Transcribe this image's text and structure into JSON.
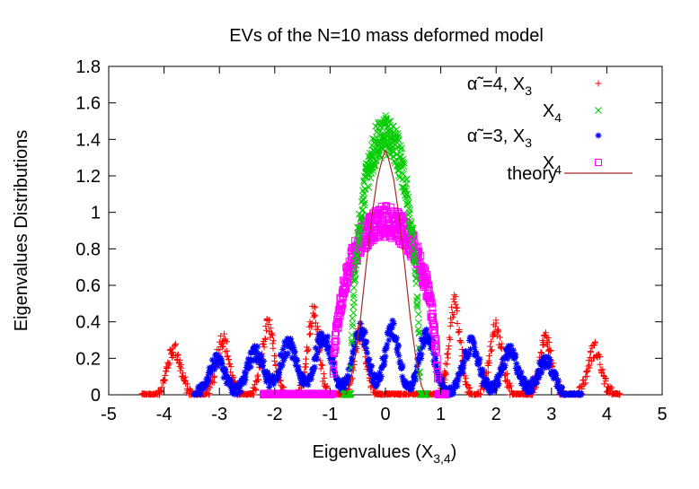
{
  "chart_data": {
    "type": "scatter",
    "title": "EVs of the N=10 mass deformed model",
    "xlabel": "Eigenvalues  (X",
    "xlabel_sub": "3,4",
    "xlabel_close": ")",
    "ylabel": "Eigenvalues Distributions",
    "xlim": [
      -5,
      5
    ],
    "ylim": [
      0,
      1.8
    ],
    "xticks": [
      "-5",
      "-4",
      "-3",
      "-2",
      "-1",
      "0",
      "1",
      "2",
      "3",
      "4",
      "5"
    ],
    "yticks": [
      "0",
      "0.2",
      "0.4",
      "0.6",
      "0.8",
      "1",
      "1.2",
      "1.4",
      "1.6",
      "1.8"
    ],
    "grid": false,
    "legend_position": "top-right",
    "legend": [
      {
        "label": "α̃ =4, X",
        "sub": "3",
        "marker": "+",
        "color": "#ff0000"
      },
      {
        "label": "X",
        "sub": "4",
        "marker": "x",
        "color": "#00cc00"
      },
      {
        "label": "α̃ =3, X",
        "sub": "3",
        "marker": "*",
        "color": "#0000ff"
      },
      {
        "label": "X",
        "sub": "4",
        "marker": "square",
        "color": "#ff00ff"
      },
      {
        "label": "theory",
        "sub": "",
        "marker": "line",
        "color": "#a52a2a"
      }
    ],
    "series": [
      {
        "key": "a4x3",
        "marker": "+",
        "color": "#ff0000",
        "range": [
          -4.4,
          1.1
        ],
        "peaks": [
          {
            "mu": -3.82,
            "sigma": 0.12,
            "h": 0.25
          },
          {
            "mu": -2.94,
            "sigma": 0.11,
            "h": 0.31
          },
          {
            "mu": -2.12,
            "sigma": 0.11,
            "h": 0.37
          },
          {
            "mu": -1.3,
            "sigma": 0.1,
            "h": 0.45
          },
          {
            "mu": -0.45,
            "sigma": 0.1,
            "h": 0.35
          },
          {
            "mu": 1.25,
            "sigma": 0.1,
            "h": 0.5
          },
          {
            "mu": 2.0,
            "sigma": 0.11,
            "h": 0.37
          },
          {
            "mu": 2.9,
            "sigma": 0.11,
            "h": 0.31
          },
          {
            "mu": 3.78,
            "sigma": 0.12,
            "h": 0.25
          }
        ],
        "extra_ranges": [
          [
            1.0,
            4.25
          ]
        ]
      },
      {
        "key": "a4x4",
        "marker": "x",
        "color": "#00cc00",
        "range": [
          -0.75,
          0.75
        ],
        "center_shape": {
          "type": "semicircle",
          "R": 0.62,
          "h": 1.42
        }
      },
      {
        "key": "a3x3",
        "marker": "*",
        "color": "#0000ff",
        "range": [
          -3.45,
          3.55
        ],
        "peaks": [
          {
            "mu": -3.05,
            "sigma": 0.15,
            "h": 0.18
          },
          {
            "mu": -2.35,
            "sigma": 0.15,
            "h": 0.23
          },
          {
            "mu": -1.75,
            "sigma": 0.15,
            "h": 0.27
          },
          {
            "mu": -1.12,
            "sigma": 0.15,
            "h": 0.32
          },
          {
            "mu": -0.45,
            "sigma": 0.14,
            "h": 0.35
          },
          {
            "mu": 0.12,
            "sigma": 0.13,
            "h": 0.36
          },
          {
            "mu": 0.75,
            "sigma": 0.14,
            "h": 0.33
          },
          {
            "mu": 1.55,
            "sigma": 0.15,
            "h": 0.27
          },
          {
            "mu": 2.25,
            "sigma": 0.15,
            "h": 0.23
          },
          {
            "mu": 2.9,
            "sigma": 0.15,
            "h": 0.18
          }
        ]
      },
      {
        "key": "a3x4",
        "marker": "square",
        "color": "#ff00ff",
        "range": [
          -2.2,
          1.1
        ],
        "center_shape": {
          "type": "semicircle",
          "R": 0.95,
          "h": 0.95
        }
      }
    ],
    "theory": {
      "color": "#a52a2a",
      "x": [
        -0.72,
        -0.65,
        -0.55,
        -0.45,
        -0.35,
        -0.25,
        -0.15,
        -0.05,
        0.0,
        0.05,
        0.15,
        0.25,
        0.35,
        0.45,
        0.55,
        0.65,
        0.72
      ],
      "y": [
        0.0,
        0.05,
        0.2,
        0.42,
        0.7,
        0.97,
        1.18,
        1.3,
        1.34,
        1.3,
        1.18,
        0.97,
        0.7,
        0.42,
        0.2,
        0.05,
        0.0
      ]
    }
  }
}
